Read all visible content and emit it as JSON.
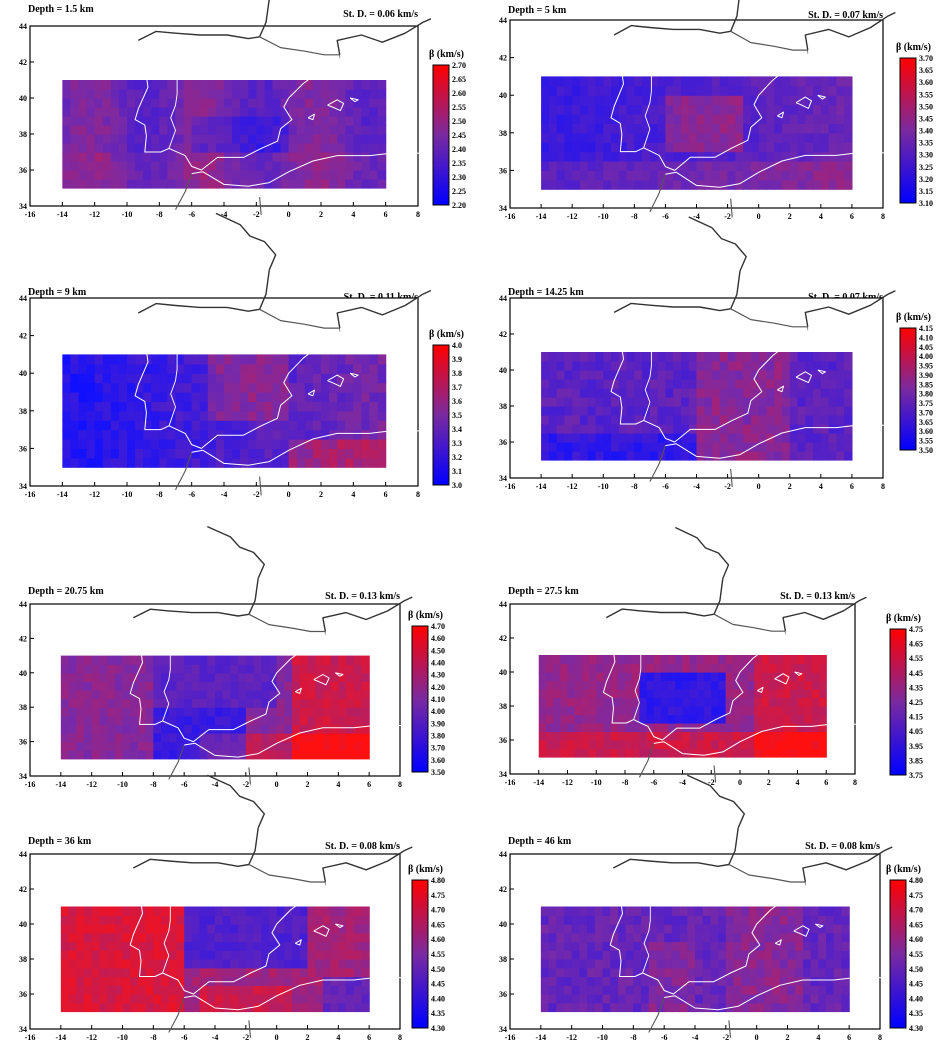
{
  "axes": {
    "x_ticks": [
      "-16",
      "-14",
      "-12",
      "-10",
      "-8",
      "-6",
      "-4",
      "-2",
      "0",
      "2",
      "4",
      "6",
      "8"
    ],
    "y_ticks": [
      "34",
      "36",
      "38",
      "40",
      "42",
      "44"
    ],
    "x_range": [
      -16,
      8
    ],
    "y_range": [
      34,
      44
    ]
  },
  "colorbar_title": "β (km/s)",
  "colors": {
    "low": "#1010ff",
    "mid": "#7a2aa6",
    "high": "#ff1010",
    "coast": "#ffffff",
    "land_outline": "#555555"
  },
  "panels": [
    {
      "depth": "Depth = 1.5 km",
      "std": "St. D. = 0.06 km/s",
      "scale": [
        "2.70",
        "2.65",
        "2.60",
        "2.55",
        "2.50",
        "2.45",
        "2.40",
        "2.35",
        "2.30",
        "2.25",
        "2.20"
      ]
    },
    {
      "depth": "Depth = 5 km",
      "std": "St. D. = 0.07 km/s",
      "scale": [
        "3.70",
        "3.65",
        "3.60",
        "3.55",
        "3.50",
        "3.45",
        "3.40",
        "3.35",
        "3.30",
        "3.25",
        "3.20",
        "3.15",
        "3.10"
      ]
    },
    {
      "depth": "Depth = 9 km",
      "std": "St. D. = 0.11 km/s",
      "scale": [
        "4.0",
        "3.9",
        "3.8",
        "3.7",
        "3.6",
        "3.5",
        "3.4",
        "3.3",
        "3.2",
        "3.1",
        "3.0"
      ]
    },
    {
      "depth": "Depth = 14.25 km",
      "std": "St. D. = 0.07 km/s",
      "scale": [
        "4.15",
        "4.10",
        "4.05",
        "4.00",
        "3.95",
        "3.90",
        "3.85",
        "3.80",
        "3.75",
        "3.70",
        "3.65",
        "3.60",
        "3.55",
        "3.50"
      ]
    },
    {
      "depth": "Depth = 20.75 km",
      "std": "St. D. = 0.13 km/s",
      "scale": [
        "4.70",
        "4.60",
        "4.50",
        "4.40",
        "4.30",
        "4.20",
        "4.10",
        "4.00",
        "3.90",
        "3.80",
        "3.70",
        "3.60",
        "3.50"
      ]
    },
    {
      "depth": "Depth = 27.5 km",
      "std": "St. D. = 0.13 km/s",
      "scale": [
        "4.75",
        "4.65",
        "4.55",
        "4.45",
        "4.35",
        "4.25",
        "4.15",
        "4.05",
        "3.95",
        "3.85",
        "3.75"
      ]
    },
    {
      "depth": "Depth = 36 km",
      "std": "St. D. = 0.08 km/s",
      "scale": [
        "4.80",
        "4.75",
        "4.70",
        "4.65",
        "4.60",
        "4.55",
        "4.50",
        "4.45",
        "4.40",
        "4.35",
        "4.30"
      ]
    },
    {
      "depth": "Depth = 46 km",
      "std": "St. D. = 0.08 km/s",
      "scale": [
        "4.80",
        "4.75",
        "4.70",
        "4.65",
        "4.60",
        "4.55",
        "4.50",
        "4.45",
        "4.40",
        "4.35",
        "4.30"
      ]
    }
  ]
}
